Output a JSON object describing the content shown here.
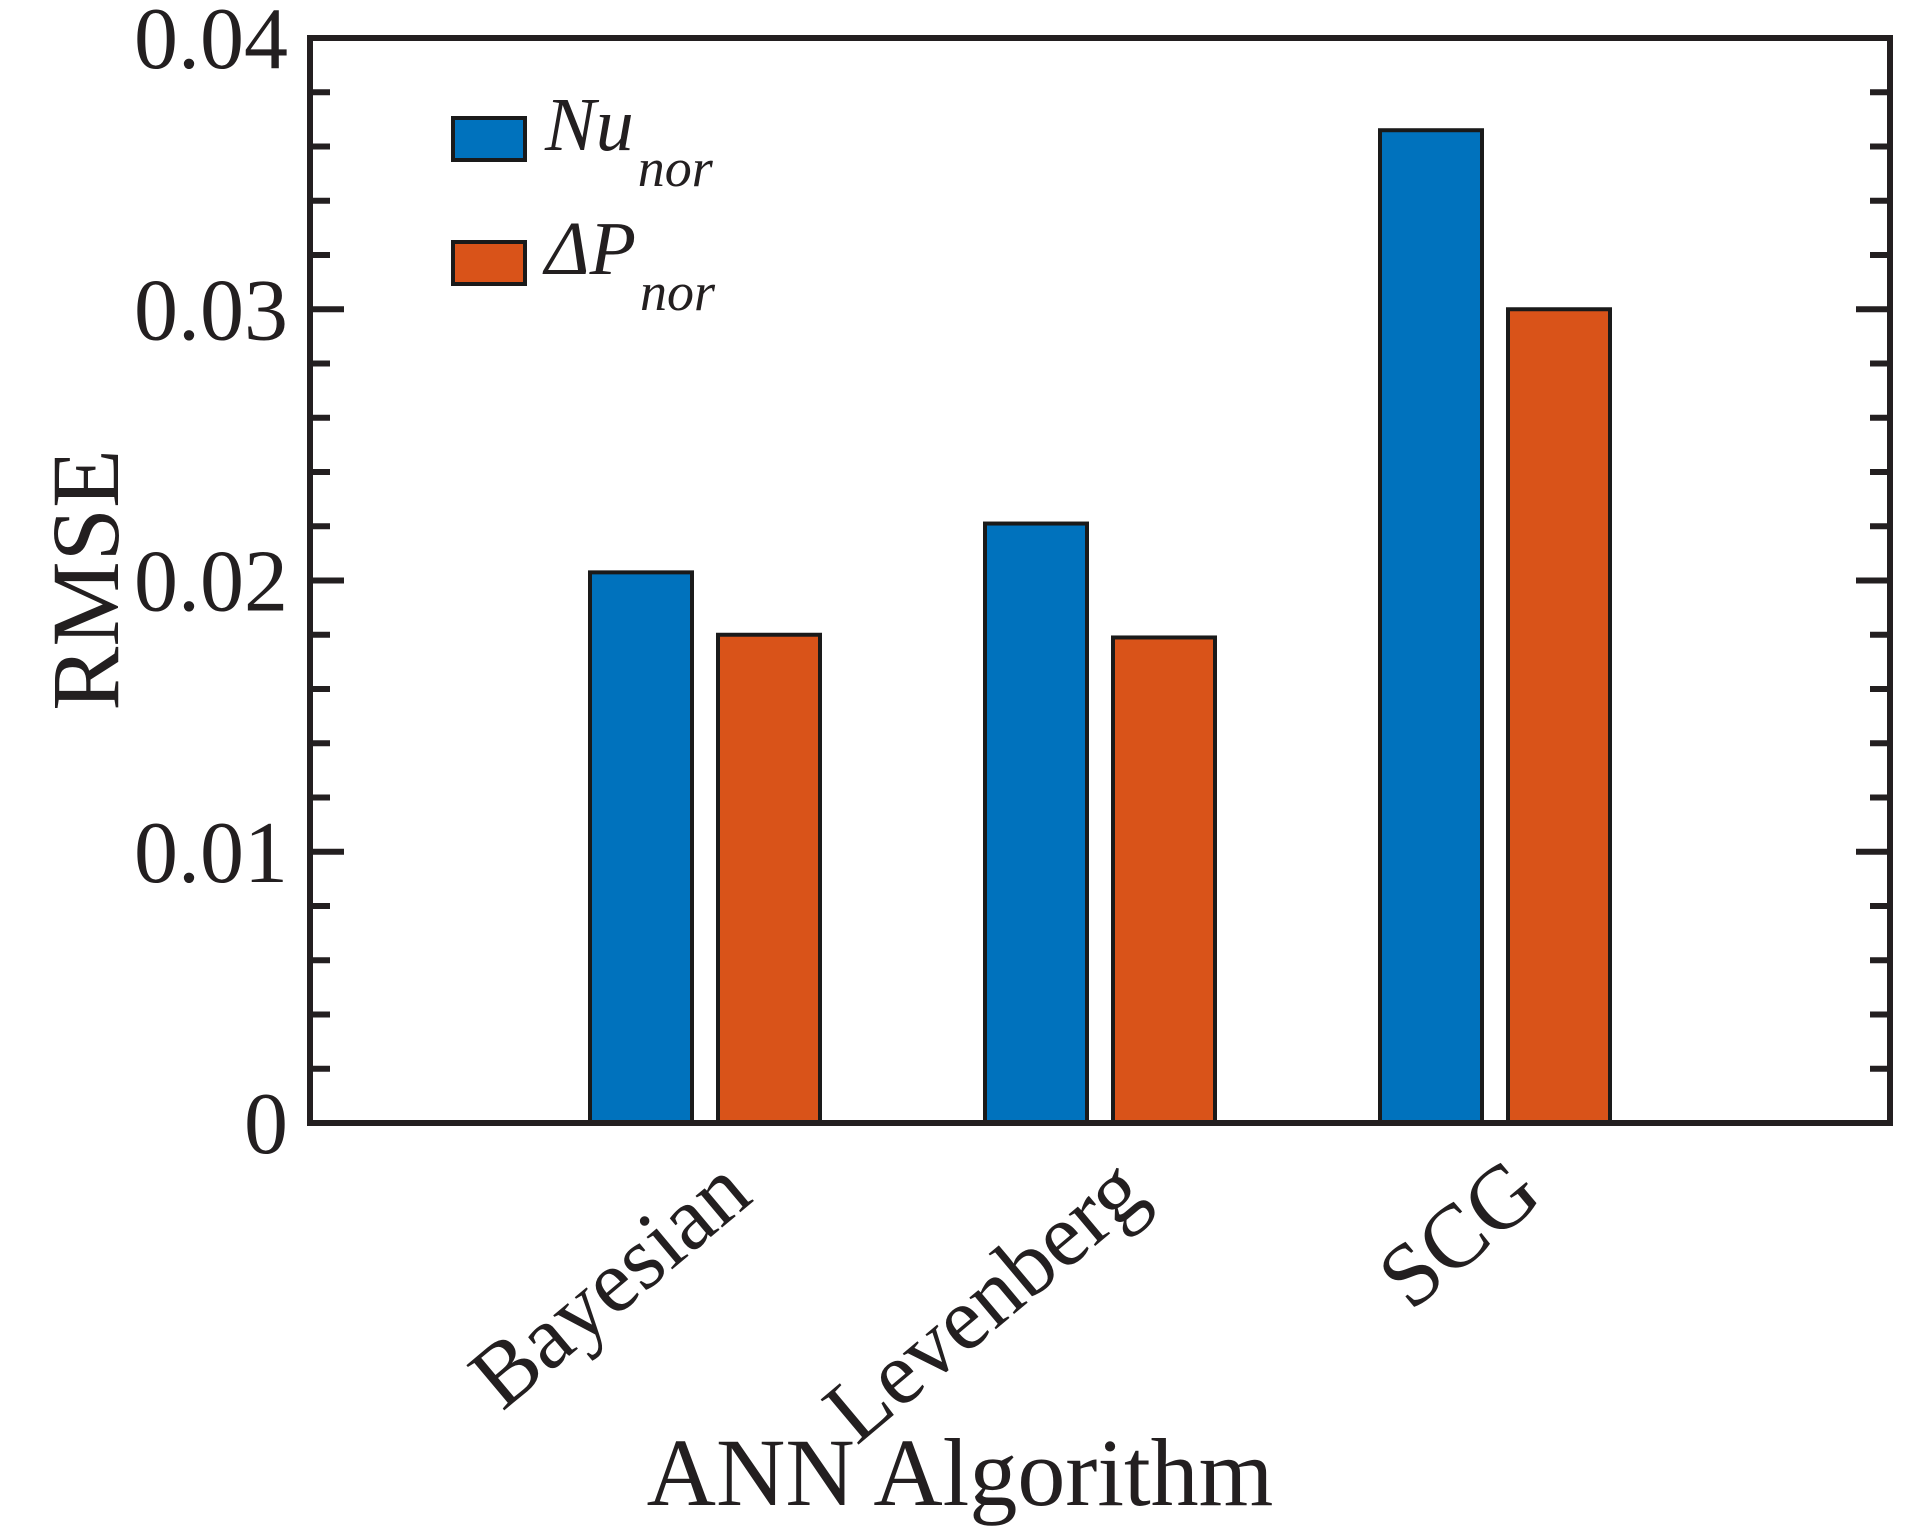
{
  "chart_data": {
    "type": "bar",
    "title": "",
    "xlabel": "ANN Algorithm",
    "ylabel": "RMSE",
    "categories": [
      "Bayesian",
      "Levenberg",
      "SCG"
    ],
    "series": [
      {
        "name": "Nu",
        "name_subscript": "nor",
        "color": "#0072bd",
        "values": [
          0.0203,
          0.0221,
          0.0366
        ]
      },
      {
        "name": "ΔP",
        "name_subscript": "nor",
        "color": "#d95319",
        "values": [
          0.018,
          0.0179,
          0.03
        ]
      }
    ],
    "ylim": [
      0,
      0.04
    ],
    "yticks": [
      "0",
      "0.01",
      "0.02",
      "0.03",
      "0.04"
    ],
    "grid": false,
    "legend_position": "top-left"
  }
}
